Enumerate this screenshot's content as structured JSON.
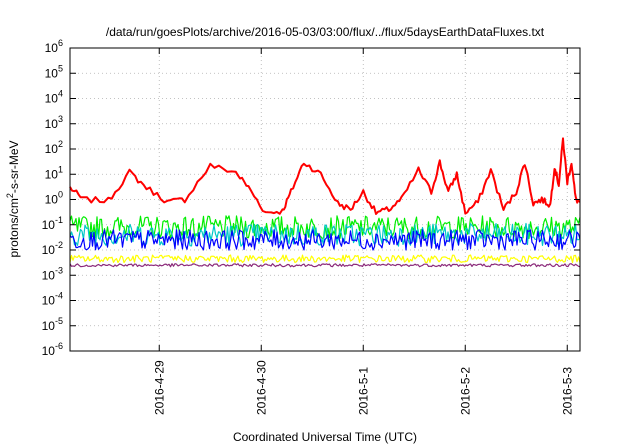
{
  "chart_data": {
    "type": "line",
    "title": "/data/run/goesPlots/archive/2016-05-03/03:00/flux/../flux/5daysEarthDataFluxes.txt",
    "xlabel": "Coordinated Universal Time (UTC)",
    "ylabel": {
      "prefix": "protons/cm",
      "sup": "2",
      "suffix": "-s-sr-MeV"
    },
    "y_scale": "log",
    "ylim_exponents": [
      -6,
      6
    ],
    "y_ticks": [
      {
        "base": "10",
        "exp": "-6"
      },
      {
        "base": "10",
        "exp": "-5"
      },
      {
        "base": "10",
        "exp": "-4"
      },
      {
        "base": "10",
        "exp": "-3"
      },
      {
        "base": "10",
        "exp": "-2"
      },
      {
        "base": "10",
        "exp": "-1"
      },
      {
        "base": "10",
        "exp": "0"
      },
      {
        "base": "10",
        "exp": "1"
      },
      {
        "base": "10",
        "exp": "2"
      },
      {
        "base": "10",
        "exp": "3"
      },
      {
        "base": "10",
        "exp": "4"
      },
      {
        "base": "10",
        "exp": "5"
      },
      {
        "base": "10",
        "exp": "6"
      }
    ],
    "xlim": [
      "2016-04-28 03:00",
      "2016-05-03 03:00"
    ],
    "x_ticks": [
      "2016-4-29",
      "2016-4-30",
      "2016-5-1",
      "2016-5-2",
      "2016-5-3"
    ],
    "grid": true,
    "legend": "none",
    "series": [
      {
        "color": "#ff0000",
        "style": "wavy",
        "x": [
          "2016-04-28 03:00",
          "2016-04-28 06:00",
          "2016-04-28 12:00",
          "2016-04-28 17:00",
          "2016-04-28 21:00",
          "2016-04-29 02:00",
          "2016-04-29 06:00",
          "2016-04-29 12:00",
          "2016-04-29 18:00",
          "2016-04-29 21:00",
          "2016-04-30 01:00",
          "2016-04-30 05:00",
          "2016-04-30 07:00",
          "2016-04-30 10:00",
          "2016-04-30 14:00",
          "2016-04-30 18:00",
          "2016-04-30 21:00",
          "2016-05-01 00:00",
          "2016-05-01 03:00",
          "2016-05-01 06:00",
          "2016-05-01 09:00",
          "2016-05-01 13:00",
          "2016-05-01 16:00",
          "2016-05-01 18:00",
          "2016-05-01 20:00",
          "2016-05-01 22:00",
          "2016-05-02 00:00",
          "2016-05-02 03:00",
          "2016-05-02 06:00",
          "2016-05-02 09:00",
          "2016-05-02 12:00",
          "2016-05-02 14:00",
          "2016-05-02 16:00",
          "2016-05-02 18:00",
          "2016-05-02 20:00",
          "2016-05-02 21:00",
          "2016-05-02 22:00",
          "2016-05-02 23:00",
          "2016-05-03 00:00",
          "2016-05-03 01:00",
          "2016-05-03 02:00",
          "2016-05-03 03:00"
        ],
        "y": [
          3,
          1,
          0.9,
          12,
          3,
          0.8,
          1,
          22,
          12,
          3,
          0.3,
          0.35,
          2,
          30,
          10,
          0.7,
          0.4,
          2,
          0.3,
          0.4,
          1,
          15,
          2,
          30,
          2,
          10,
          0.3,
          0.8,
          15,
          0.4,
          2,
          30,
          0.7,
          1,
          0.6,
          20,
          4,
          250,
          5,
          30,
          1,
          0.8
        ]
      },
      {
        "color": "#00ee00",
        "style": "noisy",
        "x": [
          "2016-04-28 03:00",
          "2016-05-03 03:00"
        ],
        "y": [
          0.08,
          0.08
        ]
      },
      {
        "color": "#00c8c8",
        "style": "noisy",
        "x": [
          "2016-04-28 03:00",
          "2016-05-03 03:00"
        ],
        "y": [
          0.04,
          0.04
        ]
      },
      {
        "color": "#0000ff",
        "style": "noisy",
        "x": [
          "2016-04-28 03:00",
          "2016-05-03 03:00"
        ],
        "y": [
          0.025,
          0.025
        ]
      },
      {
        "color": "#ffff00",
        "style": "noisy",
        "x": [
          "2016-04-28 03:00",
          "2016-05-03 03:00"
        ],
        "y": [
          0.0045,
          0.0045
        ]
      },
      {
        "color": "#8b2a7a",
        "style": "noisy",
        "x": [
          "2016-04-28 03:00",
          "2016-05-03 03:00"
        ],
        "y": [
          0.0025,
          0.0025
        ]
      }
    ]
  }
}
